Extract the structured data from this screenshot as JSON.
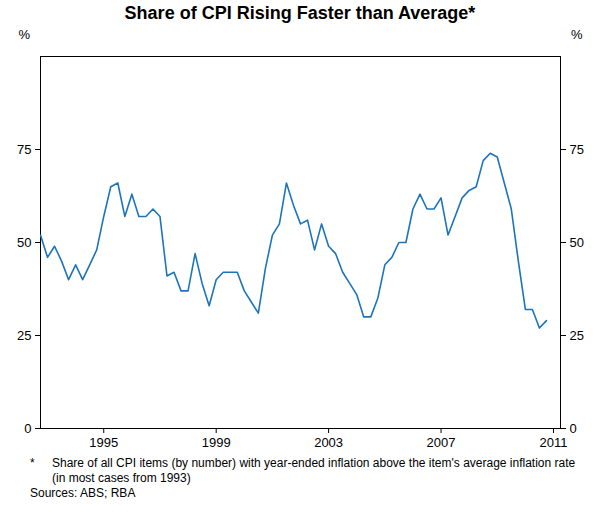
{
  "chart_data": {
    "type": "line",
    "title": "Share of CPI Rising Faster than Average*",
    "ylabel": "%",
    "footnote": {
      "marker": "*",
      "text": "Share of all CPI items (by number) with year-ended inflation above the item's average inflation rate (in most cases from 1993)"
    },
    "source": "Sources: ABS; RBA",
    "x": [
      1992.75,
      1993,
      1993.25,
      1993.5,
      1993.75,
      1994,
      1994.25,
      1994.5,
      1994.75,
      1995,
      1995.25,
      1995.5,
      1995.75,
      1996,
      1996.25,
      1996.5,
      1996.75,
      1997,
      1997.25,
      1997.5,
      1997.75,
      1998,
      1998.25,
      1998.5,
      1998.75,
      1999,
      1999.25,
      1999.5,
      1999.75,
      2000,
      2000.25,
      2000.5,
      2000.75,
      2001,
      2001.25,
      2001.5,
      2001.75,
      2002,
      2002.25,
      2002.5,
      2002.75,
      2003,
      2003.25,
      2003.5,
      2003.75,
      2004,
      2004.25,
      2004.5,
      2004.75,
      2005,
      2005.25,
      2005.5,
      2005.75,
      2006,
      2006.25,
      2006.5,
      2006.75,
      2007,
      2007.25,
      2007.5,
      2007.75,
      2008,
      2008.25,
      2008.5,
      2008.75,
      2009,
      2009.25,
      2009.5,
      2009.75,
      2010,
      2010.25,
      2010.5,
      2010.75
    ],
    "series": [
      {
        "name": "Share of CPI rising faster than average",
        "color": "#1c75bc",
        "values": [
          52,
          46,
          49,
          45,
          40,
          44,
          40,
          44,
          48,
          57,
          65,
          66,
          57,
          63,
          57,
          57,
          59,
          57,
          41,
          42,
          37,
          37,
          47,
          39,
          33,
          40,
          42,
          42,
          42,
          37,
          34,
          31,
          43,
          52,
          55,
          66,
          60,
          55,
          56,
          48,
          55,
          49,
          47,
          42,
          39,
          36,
          30,
          30,
          35,
          44,
          46,
          50,
          50,
          59,
          63,
          59,
          59,
          62,
          52,
          57,
          62,
          64,
          65,
          72,
          74,
          73,
          66,
          59,
          45,
          32,
          32,
          27,
          29
        ]
      }
    ],
    "xlim": [
      1992.75,
      2011.25
    ],
    "xticks": [
      1995,
      1999,
      2003,
      2007,
      2011
    ],
    "ylim": [
      0,
      100
    ],
    "yticks": [
      0,
      25,
      50,
      75
    ],
    "grid": false
  }
}
